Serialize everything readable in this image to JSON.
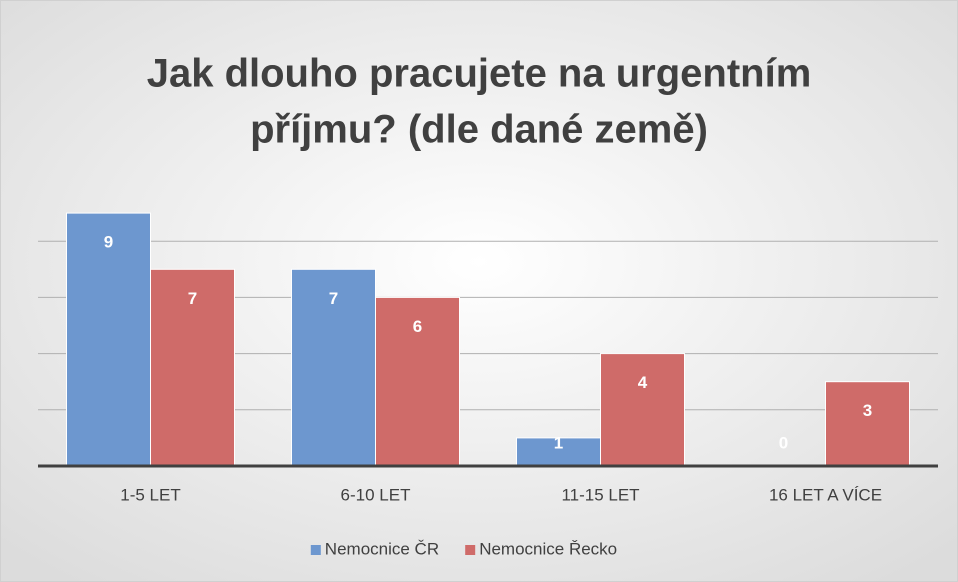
{
  "chart_data": {
    "type": "bar",
    "title": [
      "Jak dlouho pracujete na urgentním",
      "příjmu? (dle dané země)"
    ],
    "categories": [
      "1-5 LET",
      "6-10 LET",
      "11-15 LET",
      "16 LET A VÍCE"
    ],
    "series": [
      {
        "name": "Nemocnice ČR",
        "color": "#6d97cf",
        "values": [
          9,
          7,
          1,
          0
        ]
      },
      {
        "name": "Nemocnice Řecko",
        "color": "#cf6b69",
        "values": [
          7,
          6,
          4,
          3
        ]
      }
    ],
    "ylim": [
      0,
      10
    ],
    "yticks": [
      0,
      2,
      4,
      6,
      8
    ],
    "grid": true,
    "legend": "bottom"
  }
}
